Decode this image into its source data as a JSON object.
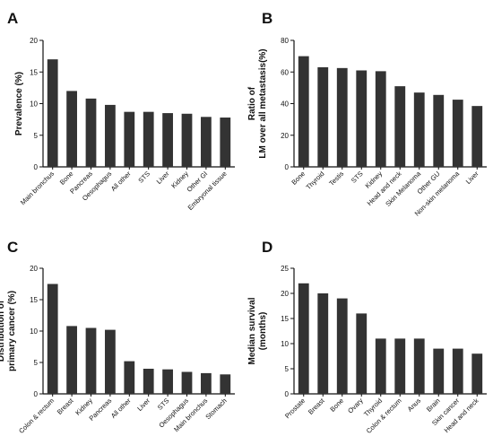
{
  "chart_data": [
    {
      "type": "bar",
      "panel": "A",
      "ylabel": [
        "Prevalence (%)"
      ],
      "ylim": [
        0,
        20
      ],
      "yticks": [
        "0",
        "5",
        "10",
        "15",
        "20"
      ],
      "ytick_values": [
        0,
        5,
        10,
        15,
        20
      ],
      "categories": [
        "Main bronchus",
        "Bone",
        "Pancreas",
        "Oesophagus",
        "All other",
        "STS",
        "Liver",
        "Kidney",
        "Other GI",
        "Embryonal tissue"
      ],
      "values": [
        17.0,
        12.0,
        10.8,
        9.8,
        8.7,
        8.7,
        8.5,
        8.4,
        7.9,
        7.8
      ],
      "bar_color": "#333333"
    },
    {
      "type": "bar",
      "panel": "B",
      "ylabel": [
        "Ratio of",
        "LM over all metastasis(%)"
      ],
      "ylim": [
        0,
        80
      ],
      "yticks": [
        "0",
        "20",
        "40",
        "60",
        "80"
      ],
      "ytick_values": [
        0,
        20,
        40,
        60,
        80
      ],
      "categories": [
        "Bone",
        "Thyroid",
        "Testis",
        "STS",
        "Kidney",
        "Head and neck",
        "Skin Melanoma",
        "Other GU",
        "Non-skin melanoma",
        "Liver"
      ],
      "values": [
        70,
        63,
        62.5,
        61,
        60.5,
        51,
        47,
        45.5,
        42.5,
        38.5
      ],
      "bar_color": "#333333"
    },
    {
      "type": "bar",
      "panel": "C",
      "ylabel": [
        "Distribution of",
        "primary cancer (%)"
      ],
      "ylim": [
        0,
        20
      ],
      "yticks": [
        "0",
        "5",
        "10",
        "15",
        "20"
      ],
      "ytick_values": [
        0,
        5,
        10,
        15,
        20
      ],
      "categories": [
        "Colon & rectum",
        "Breast",
        "Kidney",
        "Pancreas",
        "All other",
        "Liver",
        "STS",
        "Oesophagus",
        "Main bronchus",
        "Stomach"
      ],
      "values": [
        17.5,
        10.8,
        10.5,
        10.2,
        5.2,
        4.0,
        3.9,
        3.5,
        3.3,
        3.1
      ],
      "bar_color": "#333333"
    },
    {
      "type": "bar",
      "panel": "D",
      "ylabel": [
        "Median survival",
        "(months)"
      ],
      "ylim": [
        0,
        25
      ],
      "yticks": [
        "0",
        "5",
        "10",
        "15",
        "20",
        "25"
      ],
      "ytick_values": [
        0,
        5,
        10,
        15,
        20,
        25
      ],
      "categories": [
        "Prostate",
        "Breast",
        "Bone",
        "Ovary",
        "Thyroid",
        "Colon & rectum",
        "Anus",
        "Brain",
        "Skin cancer",
        "Head and neck"
      ],
      "values": [
        22,
        20,
        19,
        16,
        11,
        11,
        11,
        9,
        9,
        8
      ],
      "bar_color": "#333333"
    }
  ]
}
